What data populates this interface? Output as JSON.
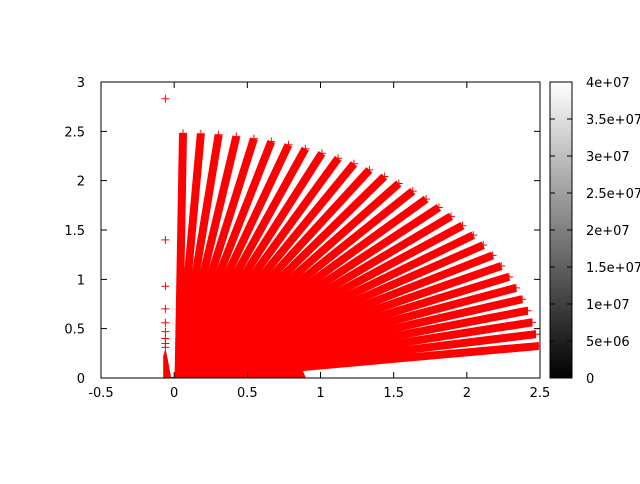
{
  "chart_data": {
    "type": "scatter",
    "title": "",
    "xlabel": "",
    "ylabel": "",
    "xlim": [
      -0.5,
      2.5
    ],
    "ylim": [
      0,
      3
    ],
    "xticks": [
      "-0.5",
      "0",
      "0.5",
      "1",
      "1.5",
      "2",
      "2.5"
    ],
    "yticks": [
      "0",
      "0.5",
      "1",
      "1.5",
      "2",
      "2.5",
      "3"
    ],
    "grid": false,
    "marker": "plus",
    "color": "#ff0000",
    "rays": {
      "count": 30,
      "angle_range_deg": [
        7.5,
        89.3
      ],
      "length": 2.48,
      "dense_core_radius": 0.85
    },
    "isolated_points": [
      {
        "x": -0.06,
        "y": 2.83
      },
      {
        "x": -0.06,
        "y": 1.4
      },
      {
        "x": -0.06,
        "y": 0.93
      },
      {
        "x": -0.06,
        "y": 0.7
      },
      {
        "x": -0.06,
        "y": 0.56
      },
      {
        "x": -0.06,
        "y": 0.47
      },
      {
        "x": -0.06,
        "y": 0.4
      },
      {
        "x": -0.06,
        "y": 0.35
      },
      {
        "x": -0.06,
        "y": 0.31
      }
    ],
    "colorbar": {
      "range": [
        0,
        40000000
      ],
      "ticks": [
        "0",
        "5e+06",
        "1e+07",
        "1.5e+07",
        "2e+07",
        "2.5e+07",
        "3e+07",
        "3.5e+07",
        "4e+07"
      ],
      "colormap": [
        "#000000",
        "#ffffff"
      ]
    }
  }
}
